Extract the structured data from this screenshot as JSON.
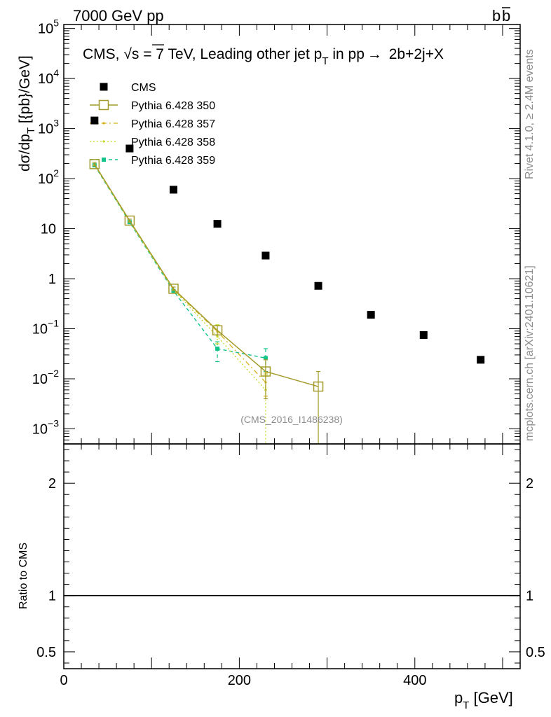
{
  "header": {
    "left": "7000 GeV pp",
    "right_main": "b",
    "right_bar": "b"
  },
  "title": {
    "prefix": "CMS, ",
    "sqrt": "√s",
    "mid": " = 7 TeV, Leading other jet p",
    "sub": "T",
    "suffix": " in pp",
    "arrow": "→",
    "proc": " 2b+2j+X"
  },
  "side_labels": {
    "rivet": "Rivet 4.1.0, ≥ 2.4M events",
    "mcplots": "mcplots.cern.ch [arXiv:2401.10621]"
  },
  "analysis_id": "(CMS_2016_I1486238)",
  "colors": {
    "cms": "#000000",
    "p350": "#a39b2b",
    "p357": "#d6b415",
    "p358": "#c2d61d",
    "p359": "#13c48a",
    "grey_text": "#8c8c8c"
  },
  "chart_data": [
    {
      "type": "scatter",
      "panel": "main",
      "ylabel_main": "dσ/dp",
      "ylabel_sub": "T",
      "ylabel_units": " [{pb}/GeV]",
      "yscale": "log",
      "ylim": [
        0.0005,
        120000
      ],
      "xlim": [
        0,
        520
      ],
      "yticks": [
        {
          "value": 100000,
          "base": "10",
          "exp": "5"
        },
        {
          "value": 10000,
          "base": "10",
          "exp": "4"
        },
        {
          "value": 1000,
          "base": "10",
          "exp": "3"
        },
        {
          "value": 100,
          "base": "10",
          "exp": "2"
        },
        {
          "value": 10,
          "base": "10",
          "exp": ""
        },
        {
          "value": 1,
          "base": "1",
          "exp": ""
        },
        {
          "value": 0.1,
          "base": "10",
          "exp": "−1"
        },
        {
          "value": 0.01,
          "base": "10",
          "exp": "−2"
        },
        {
          "value": 0.001,
          "base": "10",
          "exp": "−3"
        }
      ],
      "legend_placement": "top-left",
      "series": [
        {
          "name": "CMS",
          "key": "cms",
          "points": [
            {
              "x": 35,
              "y": 1450
            },
            {
              "x": 75,
              "y": 400
            },
            {
              "x": 125,
              "y": 60
            },
            {
              "x": 175,
              "y": 12.5
            },
            {
              "x": 230,
              "y": 2.9
            },
            {
              "x": 290,
              "y": 0.72
            },
            {
              "x": 350,
              "y": 0.19
            },
            {
              "x": 410,
              "y": 0.075
            },
            {
              "x": 475,
              "y": 0.024
            }
          ]
        },
        {
          "name": "Pythia 6.428 350",
          "key": "p350",
          "points": [
            {
              "x": 35,
              "y": 195,
              "lo": 180,
              "hi": 210
            },
            {
              "x": 75,
              "y": 14.5,
              "lo": 13.5,
              "hi": 15.5
            },
            {
              "x": 125,
              "y": 0.63,
              "lo": 0.58,
              "hi": 0.68
            },
            {
              "x": 175,
              "y": 0.093,
              "lo": 0.075,
              "hi": 0.115
            },
            {
              "x": 230,
              "y": 0.014,
              "lo": 0.004,
              "hi": 0.024
            },
            {
              "x": 290,
              "y": 0.007,
              "lo": 0.0003,
              "hi": 0.014
            }
          ]
        },
        {
          "name": "Pythia 6.428 357",
          "key": "p357",
          "points": [
            {
              "x": 35,
              "y": 192
            },
            {
              "x": 75,
              "y": 14.2
            },
            {
              "x": 125,
              "y": 0.61
            },
            {
              "x": 175,
              "y": 0.088
            },
            {
              "x": 230,
              "y": 0.0085,
              "lo": 0.0045,
              "hi": 0.013
            }
          ]
        },
        {
          "name": "Pythia 6.428 358",
          "key": "p358",
          "points": [
            {
              "x": 35,
              "y": 188
            },
            {
              "x": 75,
              "y": 13.8
            },
            {
              "x": 125,
              "y": 0.6
            },
            {
              "x": 175,
              "y": 0.07,
              "lo": 0.05,
              "hi": 0.12
            },
            {
              "x": 230,
              "y": 0.006,
              "lo": 0.0003,
              "hi": 0.012
            }
          ]
        },
        {
          "name": "Pythia 6.428 359",
          "key": "p359",
          "points": [
            {
              "x": 35,
              "y": 185
            },
            {
              "x": 75,
              "y": 13.5
            },
            {
              "x": 125,
              "y": 0.57
            },
            {
              "x": 175,
              "y": 0.04,
              "lo": 0.022,
              "hi": 0.055
            },
            {
              "x": 230,
              "y": 0.026,
              "lo": 0.014,
              "hi": 0.04
            }
          ]
        }
      ]
    },
    {
      "type": "line",
      "panel": "ratio",
      "ylabel": "Ratio to CMS",
      "xlabel_main": "p",
      "xlabel_sub": "T",
      "xlabel_units": " [GeV]",
      "xlim": [
        0,
        520
      ],
      "ylim": [
        0.35,
        2.35
      ],
      "xticks": [
        0,
        200,
        400
      ],
      "yticks": [
        0.5,
        1,
        2
      ],
      "ytick_labels": [
        "0.5",
        "1",
        "2"
      ],
      "reference_line": 1
    }
  ]
}
